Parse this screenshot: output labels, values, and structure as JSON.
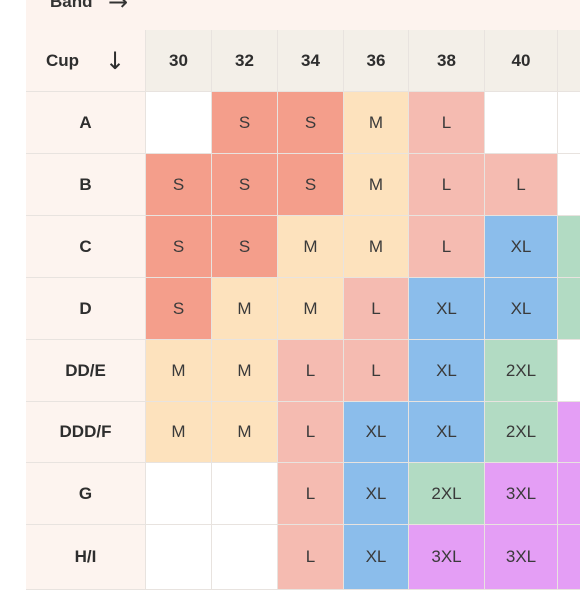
{
  "header": {
    "band_label": "Band",
    "band_arrow": "→",
    "cup_label": "Cup",
    "cup_arrow": "↓"
  },
  "bands": [
    "30",
    "32",
    "34",
    "36",
    "38",
    "40",
    ""
  ],
  "cups": [
    "A",
    "B",
    "C",
    "D",
    "DD/E",
    "DDD/F",
    "G",
    "H/I"
  ],
  "sizes": [
    [
      "",
      "S",
      "S",
      "M",
      "L",
      "",
      ""
    ],
    [
      "S",
      "S",
      "S",
      "M",
      "L",
      "L",
      ""
    ],
    [
      "S",
      "S",
      "M",
      "M",
      "L",
      "XL",
      ""
    ],
    [
      "S",
      "M",
      "M",
      "L",
      "XL",
      "XL",
      ""
    ],
    [
      "M",
      "M",
      "L",
      "L",
      "XL",
      "2XL",
      ""
    ],
    [
      "M",
      "M",
      "L",
      "XL",
      "XL",
      "2XL",
      ""
    ],
    [
      "",
      "",
      "L",
      "XL",
      "2XL",
      "3XL",
      ""
    ],
    [
      "",
      "",
      "L",
      "XL",
      "3XL",
      "3XL",
      ""
    ]
  ],
  "edge_colors": [
    "",
    "",
    "2XL",
    "2XL",
    "",
    "3XL",
    "3XL",
    "3XL"
  ],
  "colors": {
    "S": "#f49e8b",
    "M": "#fde2bd",
    "L": "#f5bbb1",
    "XL": "#8bbdeb",
    "2XL": "#b2dbc3",
    "3XL": "#e49ef5",
    "empty": "#ffffff"
  }
}
